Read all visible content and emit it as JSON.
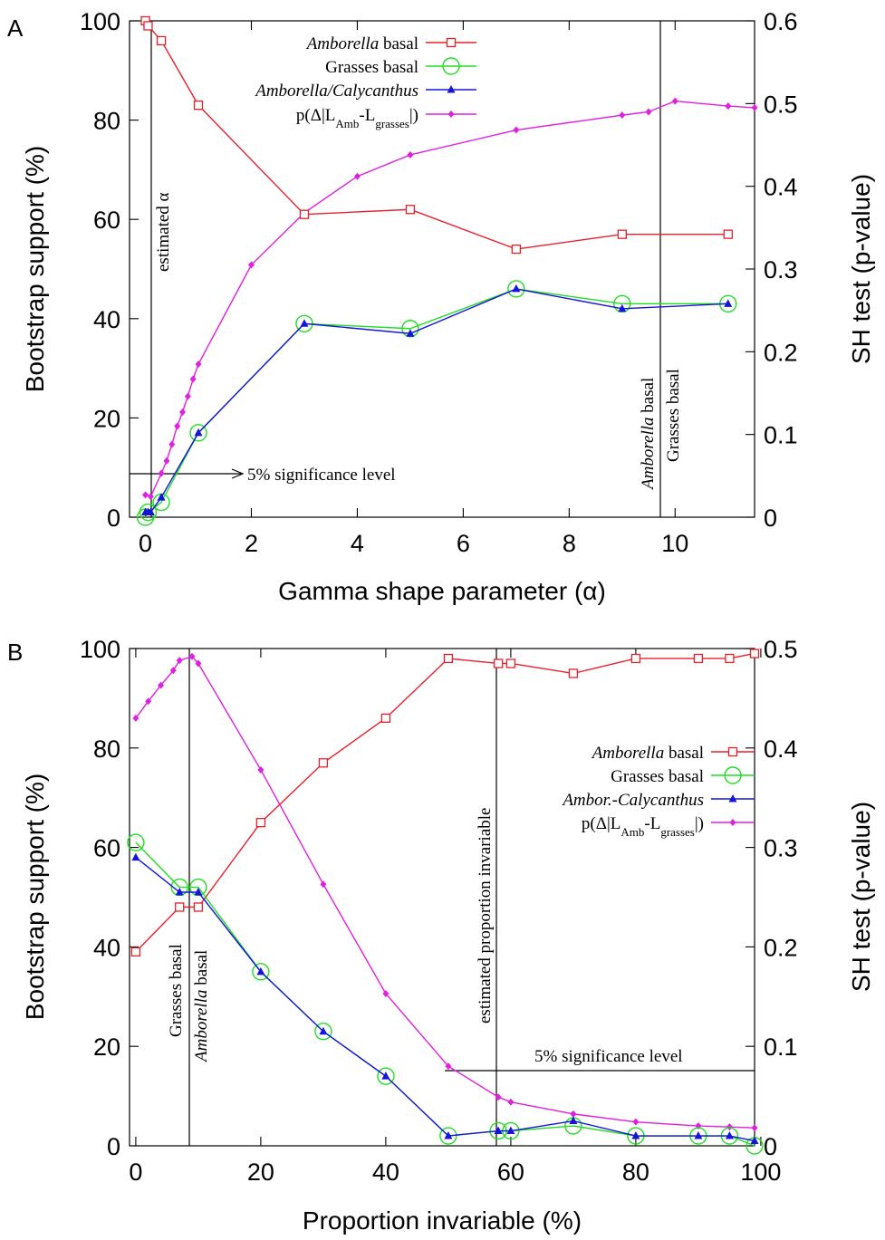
{
  "chart_data": [
    {
      "panel_label": "A",
      "type": "line",
      "xlabel": "Gamma shape parameter (α)",
      "ylabel_left": "Bootstrap support (%)",
      "ylabel_right": "SH test (p-value)",
      "xlim": [
        -0.3,
        11.5
      ],
      "ylim_left": [
        0,
        100
      ],
      "ylim_right": [
        0,
        0.6
      ],
      "xticks": [
        "0",
        "2",
        "4",
        "6",
        "8",
        "10"
      ],
      "yticks_left": [
        "0",
        "20",
        "40",
        "60",
        "80",
        "100"
      ],
      "yticks_right": [
        "0",
        "0.1",
        "0.2",
        "0.3",
        "0.4",
        "0.5",
        "0.6"
      ],
      "legend_position": "top-right",
      "series": [
        {
          "name": "Amborella basal",
          "name_italic": "Amborella",
          "name_rest": " basal",
          "axis": "left",
          "marker": "square",
          "color": "#e8202a",
          "x": [
            0,
            0.05,
            0.3,
            1,
            3,
            5,
            7,
            9,
            11
          ],
          "y": [
            100,
            99,
            96,
            83,
            61,
            62,
            54,
            57,
            57
          ]
        },
        {
          "name": "Grasses basal",
          "axis": "left",
          "marker": "circle",
          "color": "#22dd22",
          "x": [
            0,
            0.05,
            0.3,
            1,
            3,
            5,
            7,
            9,
            11
          ],
          "y": [
            0,
            1,
            3,
            17,
            39,
            38,
            46,
            43,
            43
          ]
        },
        {
          "name": "Amborella/Calycanthus",
          "axis": "left",
          "marker": "triangle",
          "color": "#1515d8",
          "x": [
            0,
            0.05,
            0.1,
            0.3,
            1,
            3,
            5,
            7,
            9,
            11
          ],
          "y": [
            1,
            1,
            1,
            4,
            17,
            39,
            37,
            46,
            42,
            43
          ]
        },
        {
          "name": "p(Δ|LAmb-Lgrasses|)",
          "axis": "right",
          "marker": "diamond",
          "color": "#e020e0",
          "x": [
            0,
            0.1,
            0.3,
            0.4,
            0.5,
            0.6,
            0.7,
            0.8,
            0.9,
            1,
            2,
            3,
            4,
            5,
            7,
            9,
            9.5,
            10,
            11,
            11.5
          ],
          "y": [
            0.027,
            0.025,
            0.053,
            0.068,
            0.088,
            0.11,
            0.127,
            0.146,
            0.167,
            0.185,
            0.305,
            0.368,
            0.412,
            0.438,
            0.468,
            0.486,
            0.49,
            0.503,
            0.497,
            0.495
          ]
        }
      ],
      "vlines": [
        {
          "x": 0.3,
          "label": "estimated α"
        },
        {
          "x": 9.8,
          "label_1_italic": "Amborella",
          "label_1_rest": " basal",
          "label_2": "Grasses basal"
        }
      ],
      "hline": {
        "y_right": 0.05,
        "x_end": 2.5,
        "label": "5% significance level"
      }
    },
    {
      "panel_label": "B",
      "type": "line",
      "xlabel": "Proportion invariable (%)",
      "ylabel_left": "Bootstrap support (%)",
      "ylabel_right": "SH test (p-value)",
      "xlim": [
        -1,
        99
      ],
      "ylim_left": [
        0,
        100
      ],
      "ylim_right": [
        0,
        0.5
      ],
      "xticks": [
        "0",
        "20",
        "40",
        "60",
        "80",
        "100"
      ],
      "yticks_left": [
        "0",
        "20",
        "40",
        "60",
        "80",
        "100"
      ],
      "yticks_right": [
        "0",
        "0.1",
        "0.2",
        "0.3",
        "0.4",
        "0.5"
      ],
      "legend_position": "center-right",
      "series": [
        {
          "name": "Amborella basal",
          "name_italic": "Amborella",
          "name_rest": " basal",
          "axis": "left",
          "marker": "square",
          "color": "#e8202a",
          "x": [
            0,
            7,
            10,
            20,
            30,
            40,
            50,
            58,
            60,
            70,
            80,
            90,
            95,
            99
          ],
          "y": [
            39,
            48,
            48,
            65,
            77,
            86,
            98,
            97,
            97,
            95,
            98,
            98,
            98,
            99
          ]
        },
        {
          "name": "Grasses basal",
          "axis": "left",
          "marker": "circle",
          "color": "#22dd22",
          "x": [
            0,
            7,
            10,
            20,
            30,
            40,
            50,
            58,
            60,
            70,
            80,
            90,
            95,
            99
          ],
          "y": [
            61,
            52,
            52,
            35,
            23,
            14,
            2,
            3,
            3,
            4,
            2,
            2,
            2,
            0
          ]
        },
        {
          "name": "Ambor.-Calycanthus",
          "axis": "left",
          "marker": "triangle",
          "color": "#1515d8",
          "x": [
            0,
            7,
            10,
            20,
            30,
            40,
            50,
            58,
            60,
            70,
            80,
            90,
            95,
            99
          ],
          "y": [
            58,
            51,
            51,
            35,
            23,
            14,
            2,
            3,
            3,
            5,
            2,
            2,
            2,
            1
          ]
        },
        {
          "name": "p(Δ|LAmb-Lgrasses|)",
          "axis": "right",
          "marker": "diamond",
          "color": "#e020e0",
          "x": [
            0,
            2,
            4,
            6,
            7,
            9,
            10,
            20,
            30,
            40,
            50,
            58,
            60,
            70,
            80,
            90,
            95,
            99
          ],
          "y": [
            0.43,
            0.447,
            0.463,
            0.478,
            0.488,
            0.492,
            0.485,
            0.378,
            0.263,
            0.153,
            0.08,
            0.049,
            0.044,
            0.032,
            0.024,
            0.02,
            0.019,
            0.018
          ]
        }
      ],
      "vlines": [
        {
          "x": 8.5,
          "label_1": "Grasses basal",
          "label_2_italic": "Amborella",
          "label_2_rest": " basal"
        },
        {
          "x": 57.5,
          "label": "estimated proportion invariable"
        }
      ],
      "hline": {
        "y_right": 0.05,
        "x_start": 49,
        "label": "5% significance level"
      }
    }
  ]
}
